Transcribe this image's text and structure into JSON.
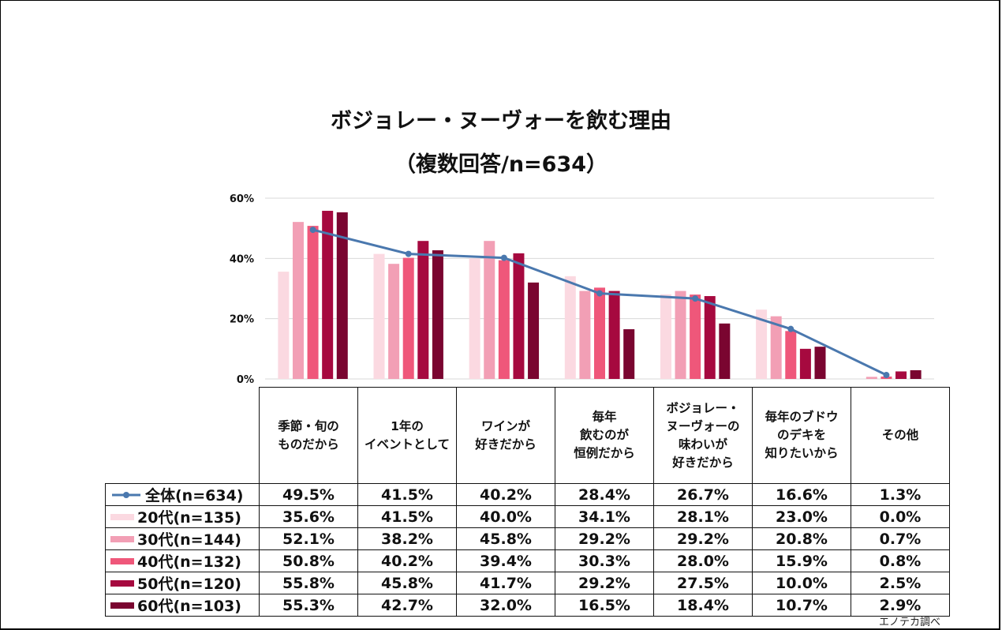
{
  "chart_data": {
    "type": "bar",
    "title": "ボジョレー・ヌーヴォーを飲む理由",
    "subtitle": "（複数回答/n=634）",
    "xlabel": "",
    "ylabel": "",
    "ylim": [
      0,
      60
    ],
    "yticks": [
      0,
      20,
      40,
      60
    ],
    "ytick_labels": [
      "0%",
      "20%",
      "40%",
      "60%"
    ],
    "grid": true,
    "legend": "table-left",
    "categories": [
      "季節・旬の\nものだから",
      "1年の\nイベントとして",
      "ワインが\n好きだから",
      "毎年\n飲むのが\n恒例だから",
      "ボジョレー・\nヌーヴォーの\n味わいが\n好きだから",
      "毎年のブドウ\nのデキを\n知りたいから",
      "その他"
    ],
    "line_series": {
      "name": "全体(n=634)",
      "type": "line",
      "color": "#4A78AE",
      "values": [
        49.5,
        41.5,
        40.2,
        28.4,
        26.7,
        16.6,
        1.3
      ]
    },
    "series": [
      {
        "name": "20代(n=135)",
        "color": "#FBD9E1",
        "values": [
          35.6,
          41.5,
          40.0,
          34.1,
          28.1,
          23.0,
          0.0
        ]
      },
      {
        "name": "30代(n=144)",
        "color": "#F29FB5",
        "values": [
          52.1,
          38.2,
          45.8,
          29.2,
          29.2,
          20.8,
          0.7
        ]
      },
      {
        "name": "40代(n=132)",
        "color": "#EF577A",
        "values": [
          50.8,
          40.2,
          39.4,
          30.3,
          28.0,
          15.9,
          0.8
        ]
      },
      {
        "name": "50代(n=120)",
        "color": "#A6093F",
        "values": [
          55.8,
          45.8,
          41.7,
          29.2,
          27.5,
          10.0,
          2.5
        ]
      },
      {
        "name": "60代(n=103)",
        "color": "#7A0530",
        "values": [
          55.3,
          42.7,
          32.0,
          16.5,
          18.4,
          10.7,
          2.9
        ]
      }
    ],
    "table": {
      "rows": [
        {
          "label": "全体(n=634)",
          "values": [
            "49.5%",
            "41.5%",
            "40.2%",
            "28.4%",
            "26.7%",
            "16.6%",
            "1.3%"
          ]
        },
        {
          "label": "20代(n=135)",
          "values": [
            "35.6%",
            "41.5%",
            "40.0%",
            "34.1%",
            "28.1%",
            "23.0%",
            "0.0%"
          ]
        },
        {
          "label": "30代(n=144)",
          "values": [
            "52.1%",
            "38.2%",
            "45.8%",
            "29.2%",
            "29.2%",
            "20.8%",
            "0.7%"
          ]
        },
        {
          "label": "40代(n=132)",
          "values": [
            "50.8%",
            "40.2%",
            "39.4%",
            "30.3%",
            "28.0%",
            "15.9%",
            "0.8%"
          ]
        },
        {
          "label": "50代(n=120)",
          "values": [
            "55.8%",
            "45.8%",
            "41.7%",
            "29.2%",
            "27.5%",
            "10.0%",
            "2.5%"
          ]
        },
        {
          "label": "60代(n=103)",
          "values": [
            "55.3%",
            "42.7%",
            "32.0%",
            "16.5%",
            "18.4%",
            "10.7%",
            "2.9%"
          ]
        }
      ]
    },
    "source": "エノテカ調べ"
  }
}
